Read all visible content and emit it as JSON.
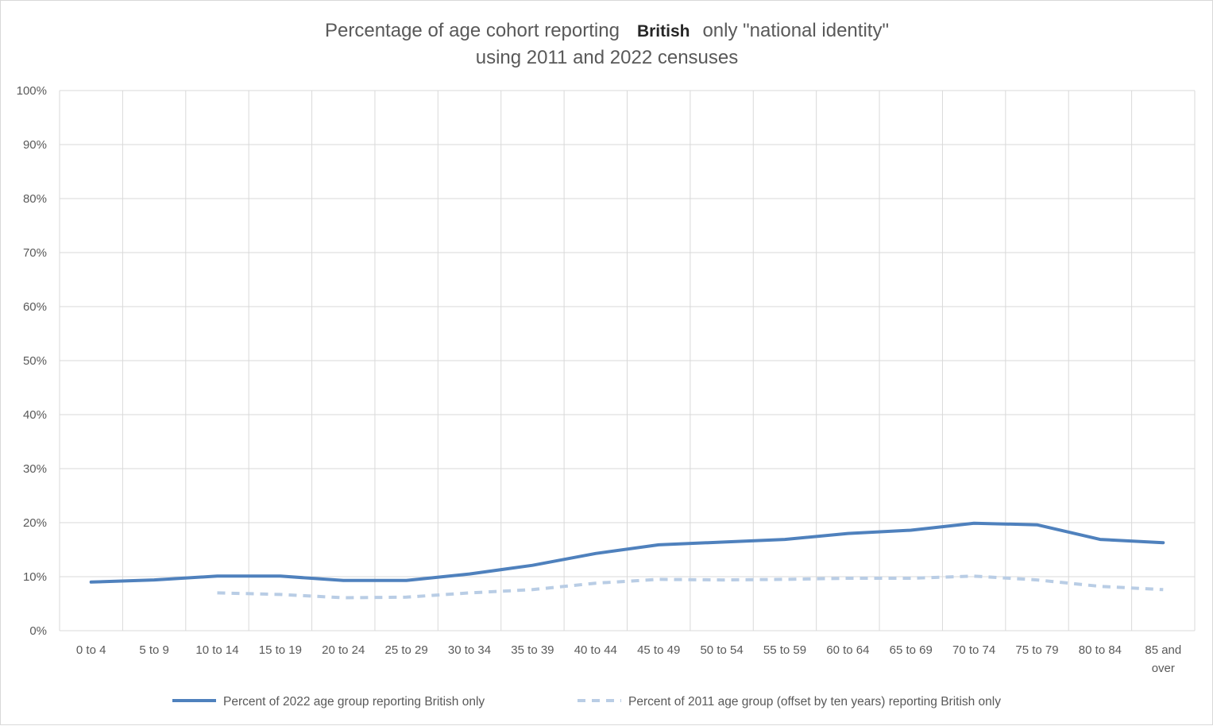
{
  "chart_data": {
    "type": "line",
    "title_parts": [
      "Percentage of age cohort reporting",
      "British",
      "only \"national identity\""
    ],
    "subtitle": "using 2011 and 2022 censuses",
    "categories": [
      "0 to  4",
      "5 to 9",
      "10 to 14",
      "15 to 19",
      "20 to 24",
      "25 to 29",
      "30 to 34",
      "35 to 39",
      "40 to 44",
      "45 to 49",
      "50 to 54",
      "55 to 59",
      "60 to 64",
      "65 to 69",
      "70 to 74",
      "75 to 79",
      "80 to 84",
      "85 and over"
    ],
    "category_lines": [
      [
        "0 to  4"
      ],
      [
        "5 to 9"
      ],
      [
        "10 to 14"
      ],
      [
        "15 to 19"
      ],
      [
        "20 to 24"
      ],
      [
        "25 to 29"
      ],
      [
        "30 to 34"
      ],
      [
        "35 to 39"
      ],
      [
        "40 to 44"
      ],
      [
        "45 to 49"
      ],
      [
        "50 to 54"
      ],
      [
        "55 to 59"
      ],
      [
        "60 to 64"
      ],
      [
        "65 to 69"
      ],
      [
        "70 to 74"
      ],
      [
        "75 to 79"
      ],
      [
        "80 to 84"
      ],
      [
        "85 and",
        "over"
      ]
    ],
    "y_ticks": [
      "0%",
      "10%",
      "20%",
      "30%",
      "40%",
      "50%",
      "60%",
      "70%",
      "80%",
      "90%",
      "100%"
    ],
    "ylim": [
      0,
      100
    ],
    "grid": true,
    "legend_position": "bottom",
    "series": [
      {
        "name": "Percent of 2022 age group reporting British only",
        "color": "#4f81bd",
        "style": "solid",
        "values": [
          9.0,
          9.4,
          10.1,
          10.1,
          9.3,
          9.3,
          10.5,
          12.1,
          14.3,
          15.9,
          16.4,
          16.9,
          18.0,
          18.6,
          19.9,
          19.6,
          16.9,
          16.3
        ]
      },
      {
        "name": "Percent of 2011 age group (offset by ten years) reporting British only",
        "color": "#b9cde5",
        "style": "dashed",
        "values": [
          null,
          null,
          7.0,
          6.7,
          6.1,
          6.2,
          7.0,
          7.6,
          8.8,
          9.5,
          9.4,
          9.5,
          9.7,
          9.7,
          10.1,
          9.4,
          8.2,
          7.6
        ]
      }
    ]
  }
}
